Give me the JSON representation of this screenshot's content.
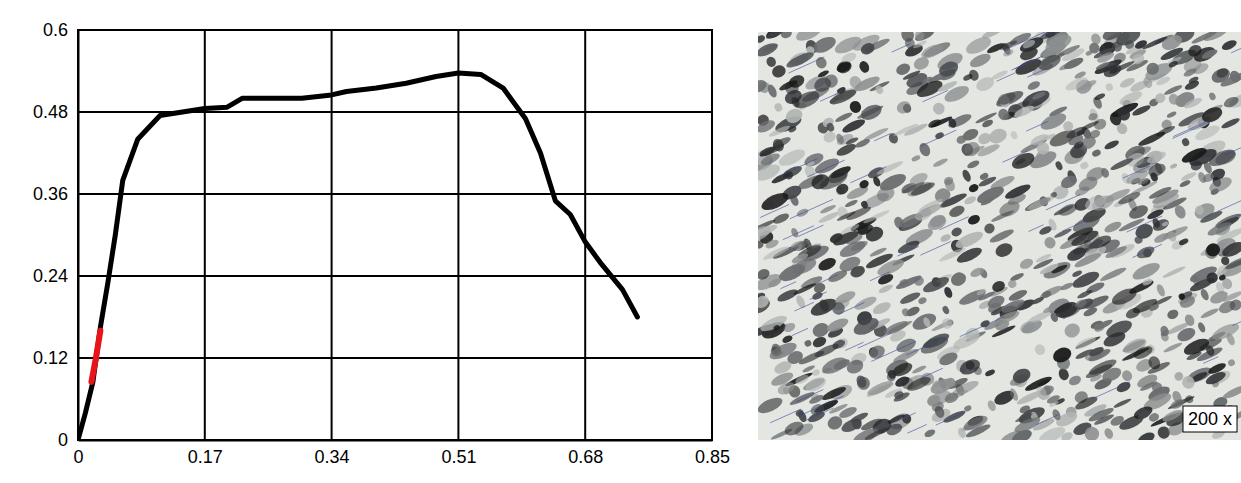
{
  "chart_data": {
    "type": "line",
    "series": [
      {
        "color": "#000000",
        "x": [
          0,
          0.01,
          0.02,
          0.03,
          0.04,
          0.05,
          0.06,
          0.08,
          0.11,
          0.14,
          0.17,
          0.2,
          0.22,
          0.26,
          0.3,
          0.34,
          0.36,
          0.4,
          0.44,
          0.48,
          0.51,
          0.54,
          0.57,
          0.6,
          0.62,
          0.64,
          0.66,
          0.68,
          0.7,
          0.73,
          0.75
        ],
        "values": [
          0,
          0.04,
          0.085,
          0.165,
          0.23,
          0.3,
          0.38,
          0.44,
          0.475,
          0.48,
          0.485,
          0.487,
          0.5,
          0.5,
          0.5,
          0.505,
          0.51,
          0.515,
          0.522,
          0.532,
          0.537,
          0.535,
          0.515,
          0.47,
          0.42,
          0.35,
          0.33,
          0.29,
          0.26,
          0.22,
          0.18
        ]
      },
      {
        "color": "#e8141a",
        "x": [
          0.018,
          0.024,
          0.03
        ],
        "values": [
          0.085,
          0.12,
          0.16
        ]
      }
    ],
    "xlim": [
      0,
      0.85
    ],
    "xticks": [
      0,
      0.17,
      0.34,
      0.51,
      0.68,
      0.85
    ],
    "ylim": [
      0,
      0.6
    ],
    "yticks": [
      0,
      0.12,
      0.24,
      0.36,
      0.48,
      0.6
    ],
    "grid": true
  },
  "micrograph": {
    "label": "200 x"
  }
}
